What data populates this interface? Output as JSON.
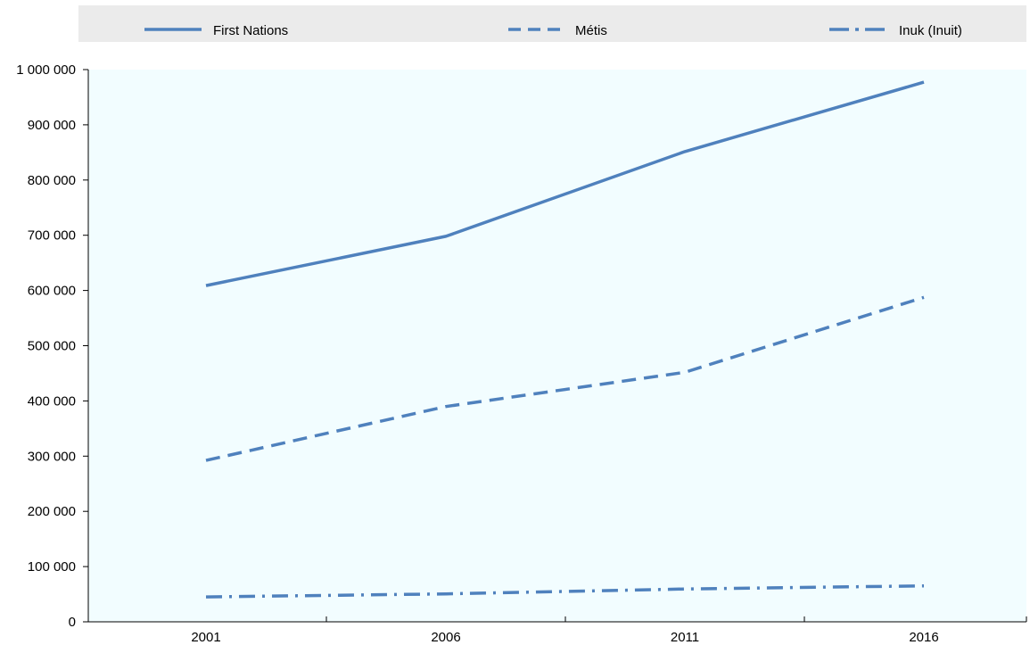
{
  "chart_data": {
    "type": "line",
    "title": "",
    "xlabel": "",
    "ylabel": "",
    "categories": [
      "2001",
      "2006",
      "2011",
      "2016"
    ],
    "y_tick_labels": [
      "0",
      "100 000",
      "200 000",
      "300 000",
      "400 000",
      "500 000",
      "600 000",
      "700 000",
      "800 000",
      "900 000",
      "1 000 000"
    ],
    "ylim": [
      0,
      1000000
    ],
    "grid": false,
    "legend_position": "top",
    "series": [
      {
        "name": "First Nations",
        "values": [
          608850,
          698025,
          851560,
          977230
        ],
        "line_style": "solid"
      },
      {
        "name": "Métis",
        "values": [
          292310,
          389785,
          451795,
          587545
        ],
        "line_style": "dashed"
      },
      {
        "name": "Inuk (Inuit)",
        "values": [
          45070,
          50485,
          59445,
          65025
        ],
        "line_style": "dash-dot"
      }
    ],
    "colors": {
      "series": "#4f81bd",
      "plot_background": "#f2fdff",
      "legend_background": "#ebebeb",
      "axis": "#000000"
    }
  }
}
